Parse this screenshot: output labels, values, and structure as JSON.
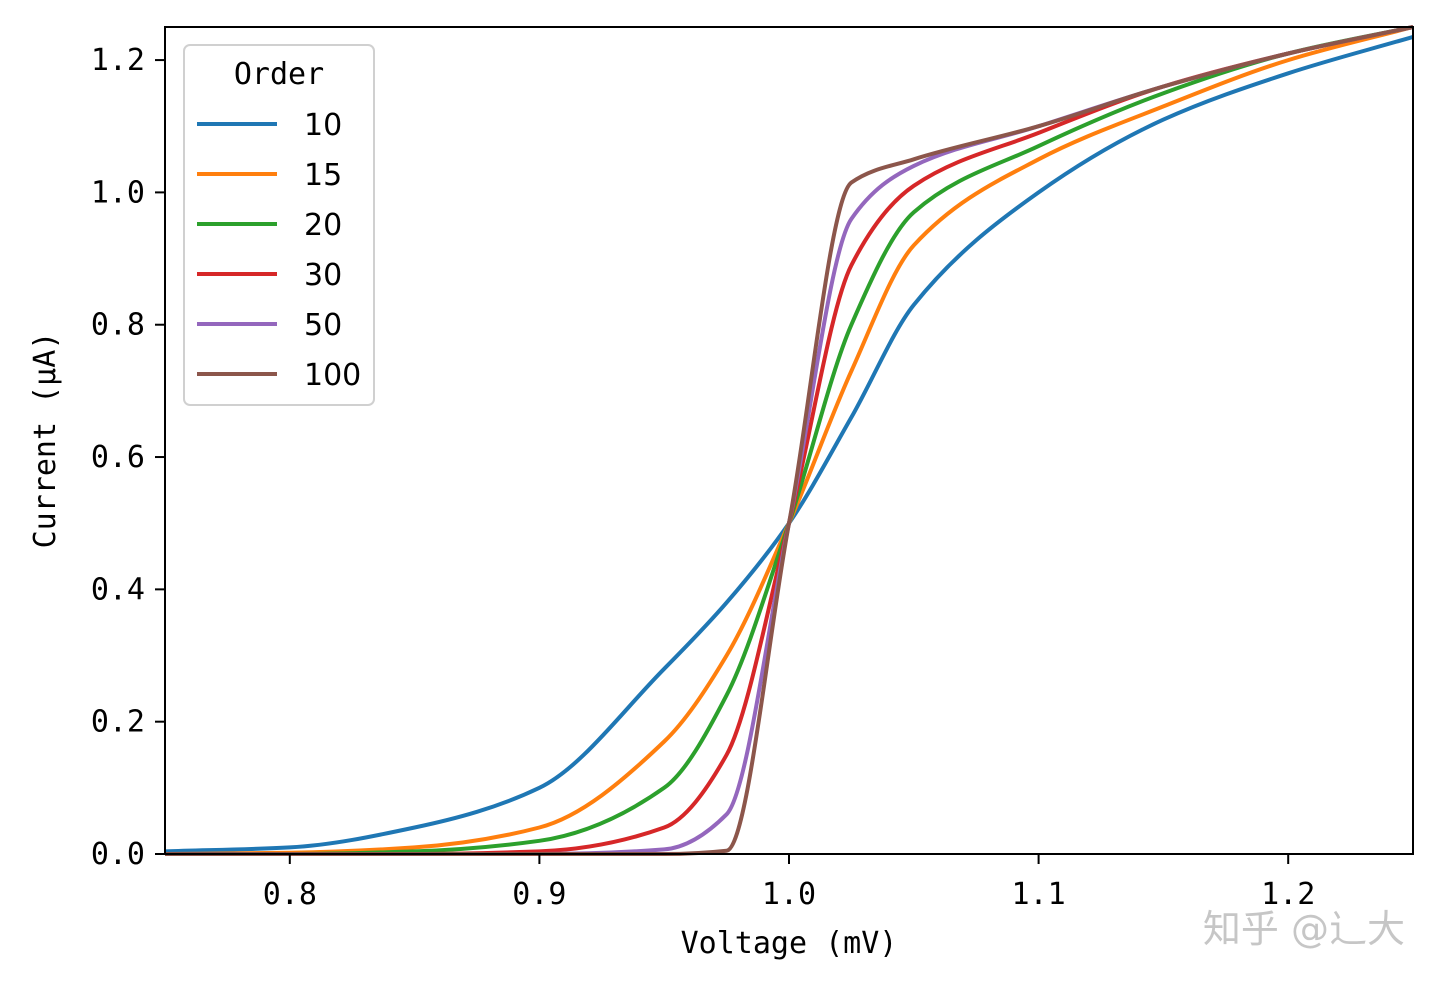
{
  "chart_data": {
    "type": "line",
    "title": "",
    "xlabel": "Voltage (mV)",
    "ylabel": "Current (μA)",
    "xlim": [
      0.75,
      1.25
    ],
    "ylim": [
      0.0,
      1.25
    ],
    "xticks": [
      0.8,
      0.9,
      1.0,
      1.1,
      1.2
    ],
    "xtick_labels": [
      "0.8",
      "0.9",
      "1.0",
      "1.1",
      "1.2"
    ],
    "yticks": [
      0.0,
      0.2,
      0.4,
      0.6,
      0.8,
      1.0,
      1.2
    ],
    "ytick_labels": [
      "0.0",
      "0.2",
      "0.4",
      "0.6",
      "0.8",
      "1.0",
      "1.2"
    ],
    "grid": false,
    "legend": {
      "title": "Order",
      "placement": "upper-left"
    },
    "x": [
      0.75,
      0.8,
      0.85,
      0.9,
      0.95,
      0.975,
      1.0,
      1.025,
      1.05,
      1.1,
      1.15,
      1.2,
      1.25
    ],
    "series": [
      {
        "name": "10",
        "color": "#1f77b4",
        "values": [
          0.004,
          0.01,
          0.04,
          0.1,
          0.28,
          0.38,
          0.5,
          0.66,
          0.83,
          1.0,
          1.11,
          1.18,
          1.235
        ]
      },
      {
        "name": "15",
        "color": "#ff7f0e",
        "values": [
          0.0,
          0.002,
          0.01,
          0.04,
          0.17,
          0.3,
          0.5,
          0.73,
          0.92,
          1.05,
          1.13,
          1.2,
          1.25
        ]
      },
      {
        "name": "20",
        "color": "#2ca02c",
        "values": [
          0.0,
          0.0,
          0.004,
          0.02,
          0.1,
          0.24,
          0.5,
          0.8,
          0.97,
          1.07,
          1.15,
          1.21,
          1.25
        ]
      },
      {
        "name": "30",
        "color": "#d62728",
        "values": [
          0.0,
          0.0,
          0.0,
          0.004,
          0.04,
          0.15,
          0.5,
          0.89,
          1.01,
          1.09,
          1.16,
          1.21,
          1.25
        ]
      },
      {
        "name": "50",
        "color": "#9467bd",
        "values": [
          0.0,
          0.0,
          0.0,
          0.0,
          0.007,
          0.06,
          0.5,
          0.96,
          1.04,
          1.1,
          1.16,
          1.21,
          1.25
        ]
      },
      {
        "name": "100",
        "color": "#8c564b",
        "values": [
          0.0,
          0.0,
          0.0,
          0.0,
          0.0,
          0.005,
          0.5,
          1.015,
          1.05,
          1.1,
          1.16,
          1.21,
          1.25
        ]
      }
    ]
  },
  "watermark": "知乎 @辶大"
}
